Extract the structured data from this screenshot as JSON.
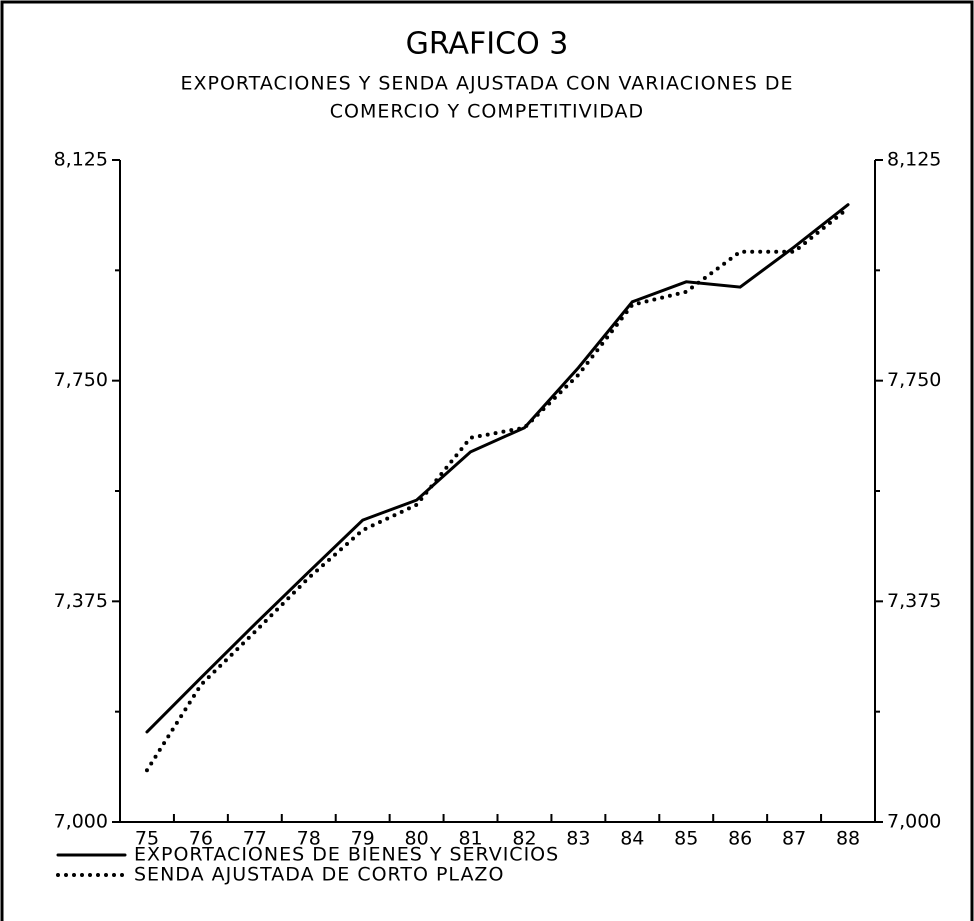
{
  "chart_data": {
    "type": "line",
    "title": "GRAFICO 3",
    "subtitle": [
      "EXPORTACIONES Y SENDA AJUSTADA CON VARIACIONES DE",
      "COMERCIO Y COMPETITIVIDAD"
    ],
    "categories": [
      "75",
      "76",
      "77",
      "78",
      "79",
      "80",
      "81",
      "82",
      "83",
      "84",
      "85",
      "86",
      "87",
      "88"
    ],
    "series": [
      {
        "name": "EXPORTACIONES DE BIENES Y SERVICIOS",
        "color": "#000000",
        "style": "solid",
        "values": [
          7.153,
          7.245,
          7.336,
          7.425,
          7.513,
          7.547,
          7.629,
          7.67,
          7.772,
          7.884,
          7.918,
          7.909,
          7.977,
          8.049
        ]
      },
      {
        "name": "SENDA AJUSTADA DE CORTO PLAZO",
        "color": "#000000",
        "style": "dotted",
        "values": [
          7.088,
          7.233,
          7.323,
          7.415,
          7.496,
          7.539,
          7.653,
          7.67,
          7.76,
          7.879,
          7.901,
          7.969,
          7.969,
          8.043
        ]
      }
    ],
    "ylim": [
      7.0,
      8.125
    ],
    "yticks": [
      {
        "value": 7.0,
        "label": "7,000"
      },
      {
        "value": 7.375,
        "label": "7,375"
      },
      {
        "value": 7.75,
        "label": "7,750"
      },
      {
        "value": 8.125,
        "label": "8,125"
      }
    ],
    "grid": false
  }
}
